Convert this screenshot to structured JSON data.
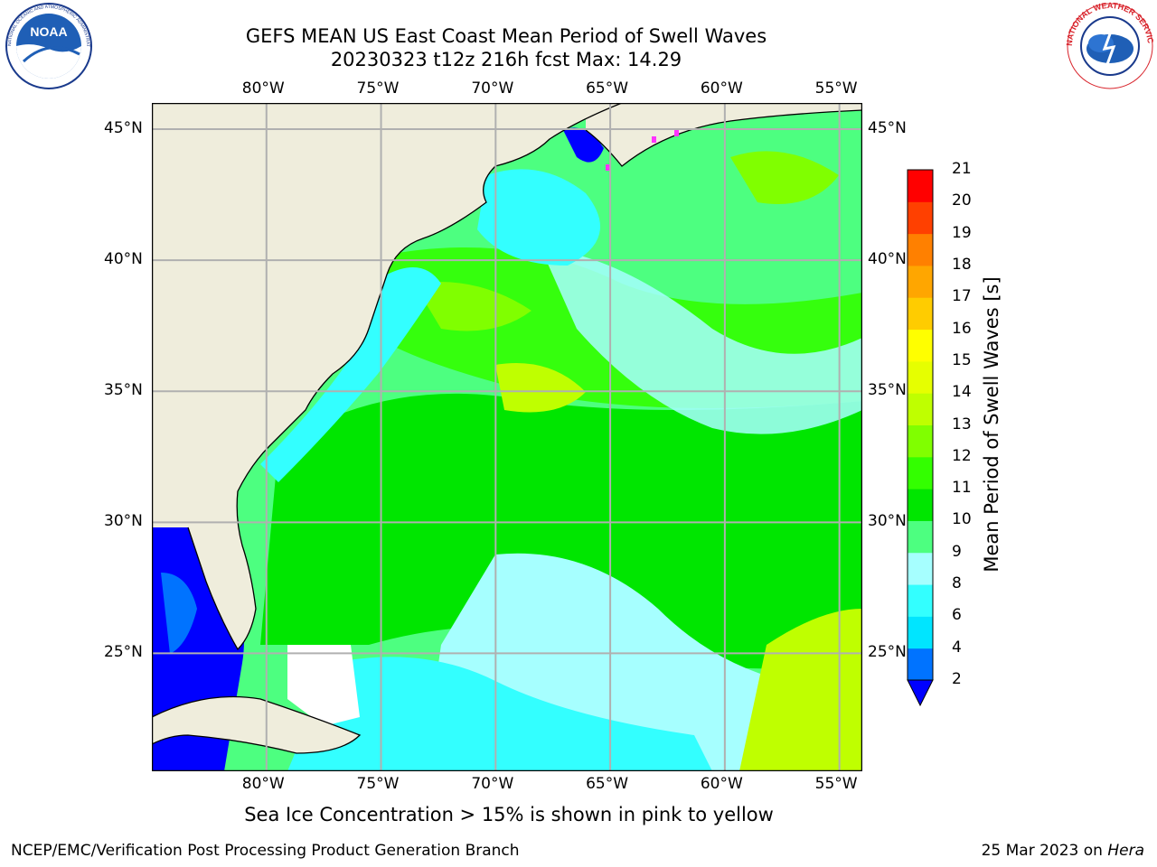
{
  "title_line1": "GEFS MEAN US East Coast Mean Period of Swell Waves",
  "title_line2": "20230323 t12z 216h fcst   Max: 14.29",
  "caption": "Sea Ice Concentration > 15% is shown in pink to yellow",
  "footer_left": "NCEP/EMC/Verification Post Processing Product Generation Branch",
  "footer_date": "25 Mar 2023 on ",
  "footer_host": "Hera",
  "logos": {
    "noaa": {
      "text": "NOAA",
      "ring": "NATIONAL OCEANIC AND ATMOSPHERIC ADMINISTRATION"
    },
    "nws": {
      "ring": "NATIONAL WEATHER SERVICE"
    }
  },
  "map": {
    "lon_range": [
      -85,
      -54
    ],
    "lat_range": [
      20.5,
      46
    ],
    "lon_ticks": [
      "80°W",
      "75°W",
      "70°W",
      "65°W",
      "60°W",
      "55°W"
    ],
    "lon_values": [
      -80,
      -75,
      -70,
      -65,
      -60,
      -55
    ],
    "lat_ticks": [
      "45°N",
      "40°N",
      "35°N",
      "30°N",
      "25°N"
    ],
    "lat_values": [
      45,
      40,
      35,
      30,
      25
    ],
    "land_color": "#efeddc",
    "grid_color": "#b0b0b0"
  },
  "colorbar": {
    "label": "Mean Period of Swell Waves [s]",
    "ticks": [
      "2",
      "4",
      "6",
      "8",
      "9",
      "10",
      "11",
      "12",
      "13",
      "14",
      "15",
      "16",
      "17",
      "18",
      "19",
      "20",
      "21"
    ],
    "colors": [
      "#0000ff",
      "#0073ff",
      "#00e5ff",
      "#33ffff",
      "#a6ffff",
      "#4dff80",
      "#00e600",
      "#33ff00",
      "#80ff00",
      "#bfff00",
      "#e6ff00",
      "#ffff00",
      "#ffcc00",
      "#ffa600",
      "#ff8000",
      "#ff4000",
      "#ff0000"
    ],
    "under_color": "#0000ff"
  }
}
